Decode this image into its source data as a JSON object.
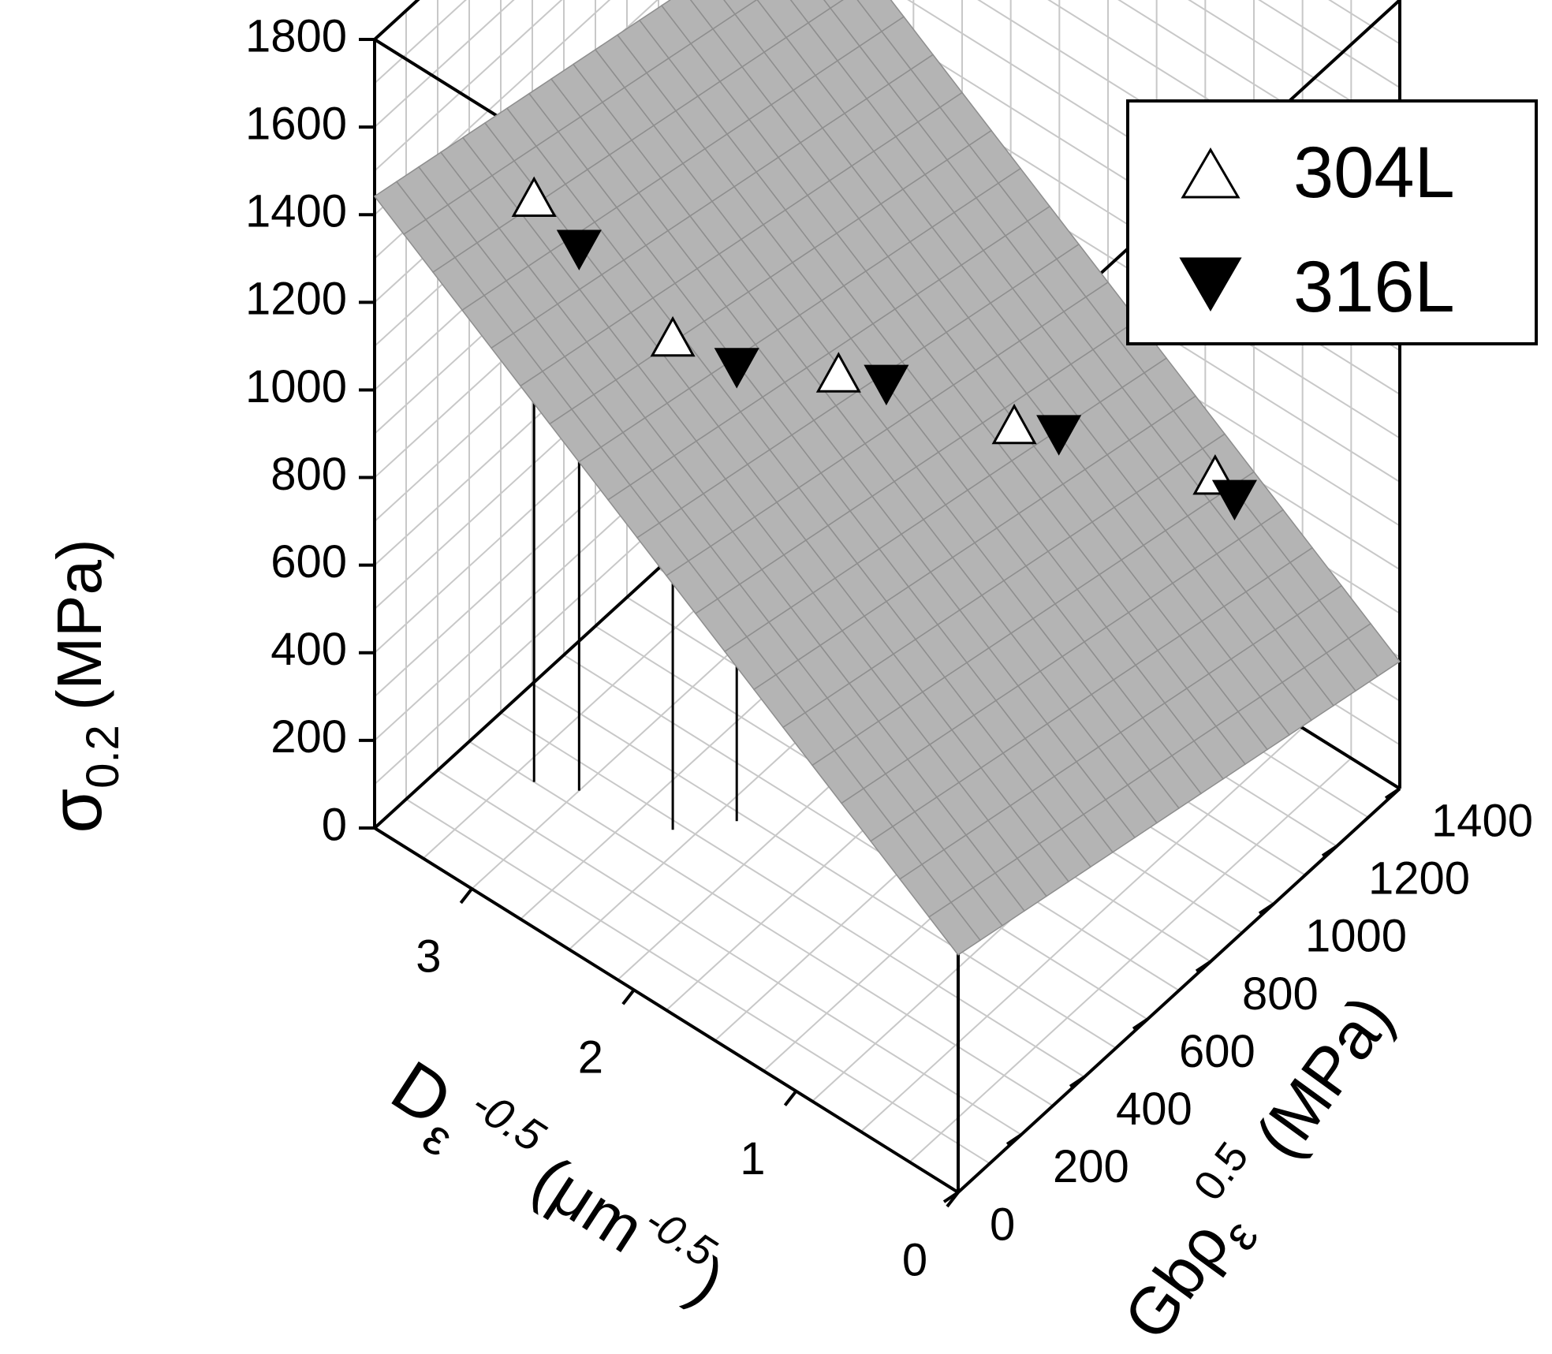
{
  "chart_data": {
    "type": "scatter3d",
    "title": "",
    "z_axis": {
      "label": "σ",
      "label_sub": "0.2",
      "label_unit": "(MPa)",
      "range": [
        0,
        1800
      ],
      "ticks": [
        "0",
        "200",
        "400",
        "600",
        "800",
        "1000",
        "1200",
        "1400",
        "1600",
        "1800"
      ]
    },
    "x_axis": {
      "label": "D",
      "label_sub": "ε",
      "label_sup": "-0.5",
      "label_unit_open": "(μm",
      "label_unit_sup": "-0.5",
      "label_unit_close": ")",
      "range": [
        0,
        3.6
      ],
      "ticks": [
        "0",
        "1",
        "2",
        "3"
      ]
    },
    "y_axis": {
      "label": "Gbρ",
      "label_sub": "ε",
      "label_sup": "0.5",
      "label_unit": "(MPa)",
      "range": [
        0,
        1400
      ],
      "ticks": [
        "0",
        "200",
        "400",
        "600",
        "800",
        "1000",
        "1200",
        "1400"
      ]
    },
    "grid": true,
    "fitted_surface": true,
    "legend": {
      "position": "top-right",
      "entries": [
        {
          "name": "304L",
          "marker": "triangle-up-open"
        },
        {
          "name": "316L",
          "marker": "triangle-down-filled"
        }
      ]
    },
    "series": [
      {
        "name": "304L",
        "points": [
          {
            "x": 3.2,
            "y": 300,
            "z": 1330
          },
          {
            "x": 2.5,
            "y": 380,
            "z": 1120
          },
          {
            "x": 2.1,
            "y": 700,
            "z": 920
          },
          {
            "x": 1.6,
            "y": 1000,
            "z": 720
          },
          {
            "x": 1.1,
            "y": 1380,
            "z": 470
          }
        ]
      },
      {
        "name": "316L",
        "points": [
          {
            "x": 3.0,
            "y": 340,
            "z": 1240
          },
          {
            "x": 2.3,
            "y": 480,
            "z": 1040
          },
          {
            "x": 2.0,
            "y": 800,
            "z": 860
          },
          {
            "x": 1.5,
            "y": 1090,
            "z": 670
          },
          {
            "x": 1.0,
            "y": 1390,
            "z": 440
          }
        ]
      }
    ]
  }
}
